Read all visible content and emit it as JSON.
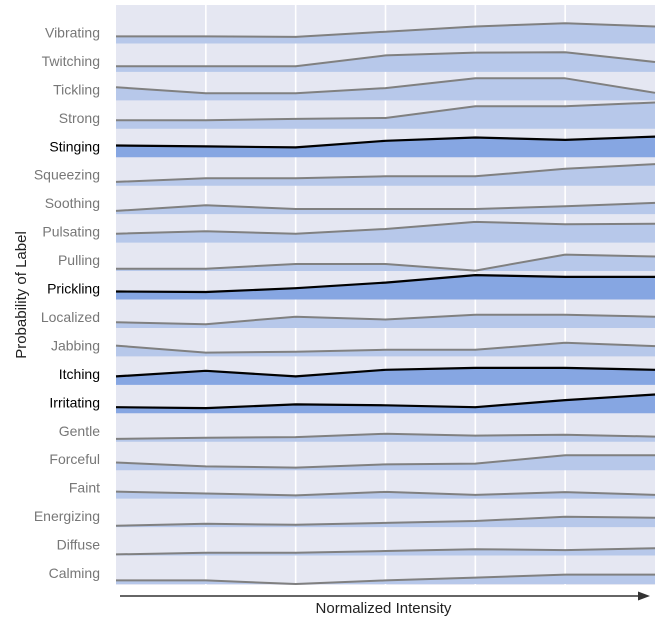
{
  "chart_data": {
    "type": "area",
    "subtype": "ridgeline",
    "title": "",
    "xlabel": "Normalized Intensity",
    "ylabel": "Probability of Label",
    "x": [
      1,
      2,
      3,
      4,
      5,
      6,
      7
    ],
    "grid": true,
    "legend": "none",
    "colors": {
      "panel": "#e5e7f2",
      "grid": "#ffffff",
      "fill_normal": "#b7c8ea",
      "fill_highlight": "#86a6e2",
      "line_normal": "#808080",
      "line_highlight": "#000000",
      "label_normal": "#777777",
      "label_highlight": "#000000",
      "axis_text": "#222222",
      "arrow": "#333333"
    },
    "series": [
      {
        "name": "Calming",
        "highlight": false,
        "values": [
          0.38,
          0.38,
          0.0,
          0.38,
          0.68,
          1.0,
          1.0
        ]
      },
      {
        "name": "Diffuse",
        "highlight": false,
        "values": [
          0.12,
          0.3,
          0.3,
          0.48,
          0.68,
          0.58,
          0.78
        ]
      },
      {
        "name": "Energizing",
        "highlight": false,
        "values": [
          0.15,
          0.35,
          0.25,
          0.45,
          0.65,
          1.1,
          1.0
        ]
      },
      {
        "name": "Faint",
        "highlight": false,
        "values": [
          0.75,
          0.55,
          0.35,
          0.72,
          0.4,
          0.7,
          0.4
        ]
      },
      {
        "name": "Forceful",
        "highlight": false,
        "values": [
          0.82,
          0.4,
          0.28,
          0.62,
          0.7,
          1.58,
          1.58
        ]
      },
      {
        "name": "Gentle",
        "highlight": false,
        "values": [
          0.3,
          0.42,
          0.5,
          0.85,
          0.65,
          0.75,
          0.55
        ]
      },
      {
        "name": "Irritating",
        "highlight": true,
        "values": [
          0.65,
          0.55,
          0.95,
          0.85,
          0.65,
          1.4,
          2.0
        ]
      },
      {
        "name": "Itching",
        "highlight": true,
        "values": [
          0.9,
          1.5,
          0.9,
          1.6,
          1.8,
          1.8,
          1.6
        ]
      },
      {
        "name": "Jabbing",
        "highlight": false,
        "values": [
          1.15,
          0.4,
          0.5,
          0.7,
          0.7,
          1.45,
          1.1
        ]
      },
      {
        "name": "Localized",
        "highlight": false,
        "values": [
          0.6,
          0.4,
          1.2,
          0.9,
          1.4,
          1.4,
          1.2
        ]
      },
      {
        "name": "Prickling",
        "highlight": true,
        "values": [
          0.85,
          0.8,
          1.2,
          1.8,
          2.6,
          2.4,
          2.4
        ]
      },
      {
        "name": "Pulling",
        "highlight": false,
        "values": [
          0.25,
          0.25,
          0.75,
          0.75,
          0.05,
          1.75,
          1.55
        ]
      },
      {
        "name": "Pulsating",
        "highlight": false,
        "values": [
          0.95,
          1.2,
          0.95,
          1.45,
          2.2,
          1.95,
          2.0
        ]
      },
      {
        "name": "Soothing",
        "highlight": false,
        "values": [
          0.35,
          0.95,
          0.55,
          0.55,
          0.55,
          0.85,
          1.2
        ]
      },
      {
        "name": "Squeezing",
        "highlight": false,
        "values": [
          0.4,
          0.8,
          0.8,
          1.0,
          1.0,
          1.8,
          2.3
        ]
      },
      {
        "name": "Stinging",
        "highlight": true,
        "values": [
          1.25,
          1.15,
          1.05,
          1.75,
          2.1,
          1.85,
          2.2
        ]
      },
      {
        "name": "Strong",
        "highlight": false,
        "values": [
          0.9,
          0.9,
          1.05,
          1.15,
          2.4,
          2.4,
          2.8
        ]
      },
      {
        "name": "Tickling",
        "highlight": false,
        "values": [
          1.4,
          0.75,
          0.75,
          1.3,
          2.35,
          2.35,
          0.8
        ]
      },
      {
        "name": "Twitching",
        "highlight": false,
        "values": [
          0.6,
          0.6,
          0.6,
          1.75,
          2.05,
          2.1,
          1.05
        ]
      },
      {
        "name": "Vibrating",
        "highlight": false,
        "values": [
          0.75,
          0.75,
          0.7,
          1.25,
          1.8,
          2.15,
          1.8
        ]
      }
    ]
  }
}
